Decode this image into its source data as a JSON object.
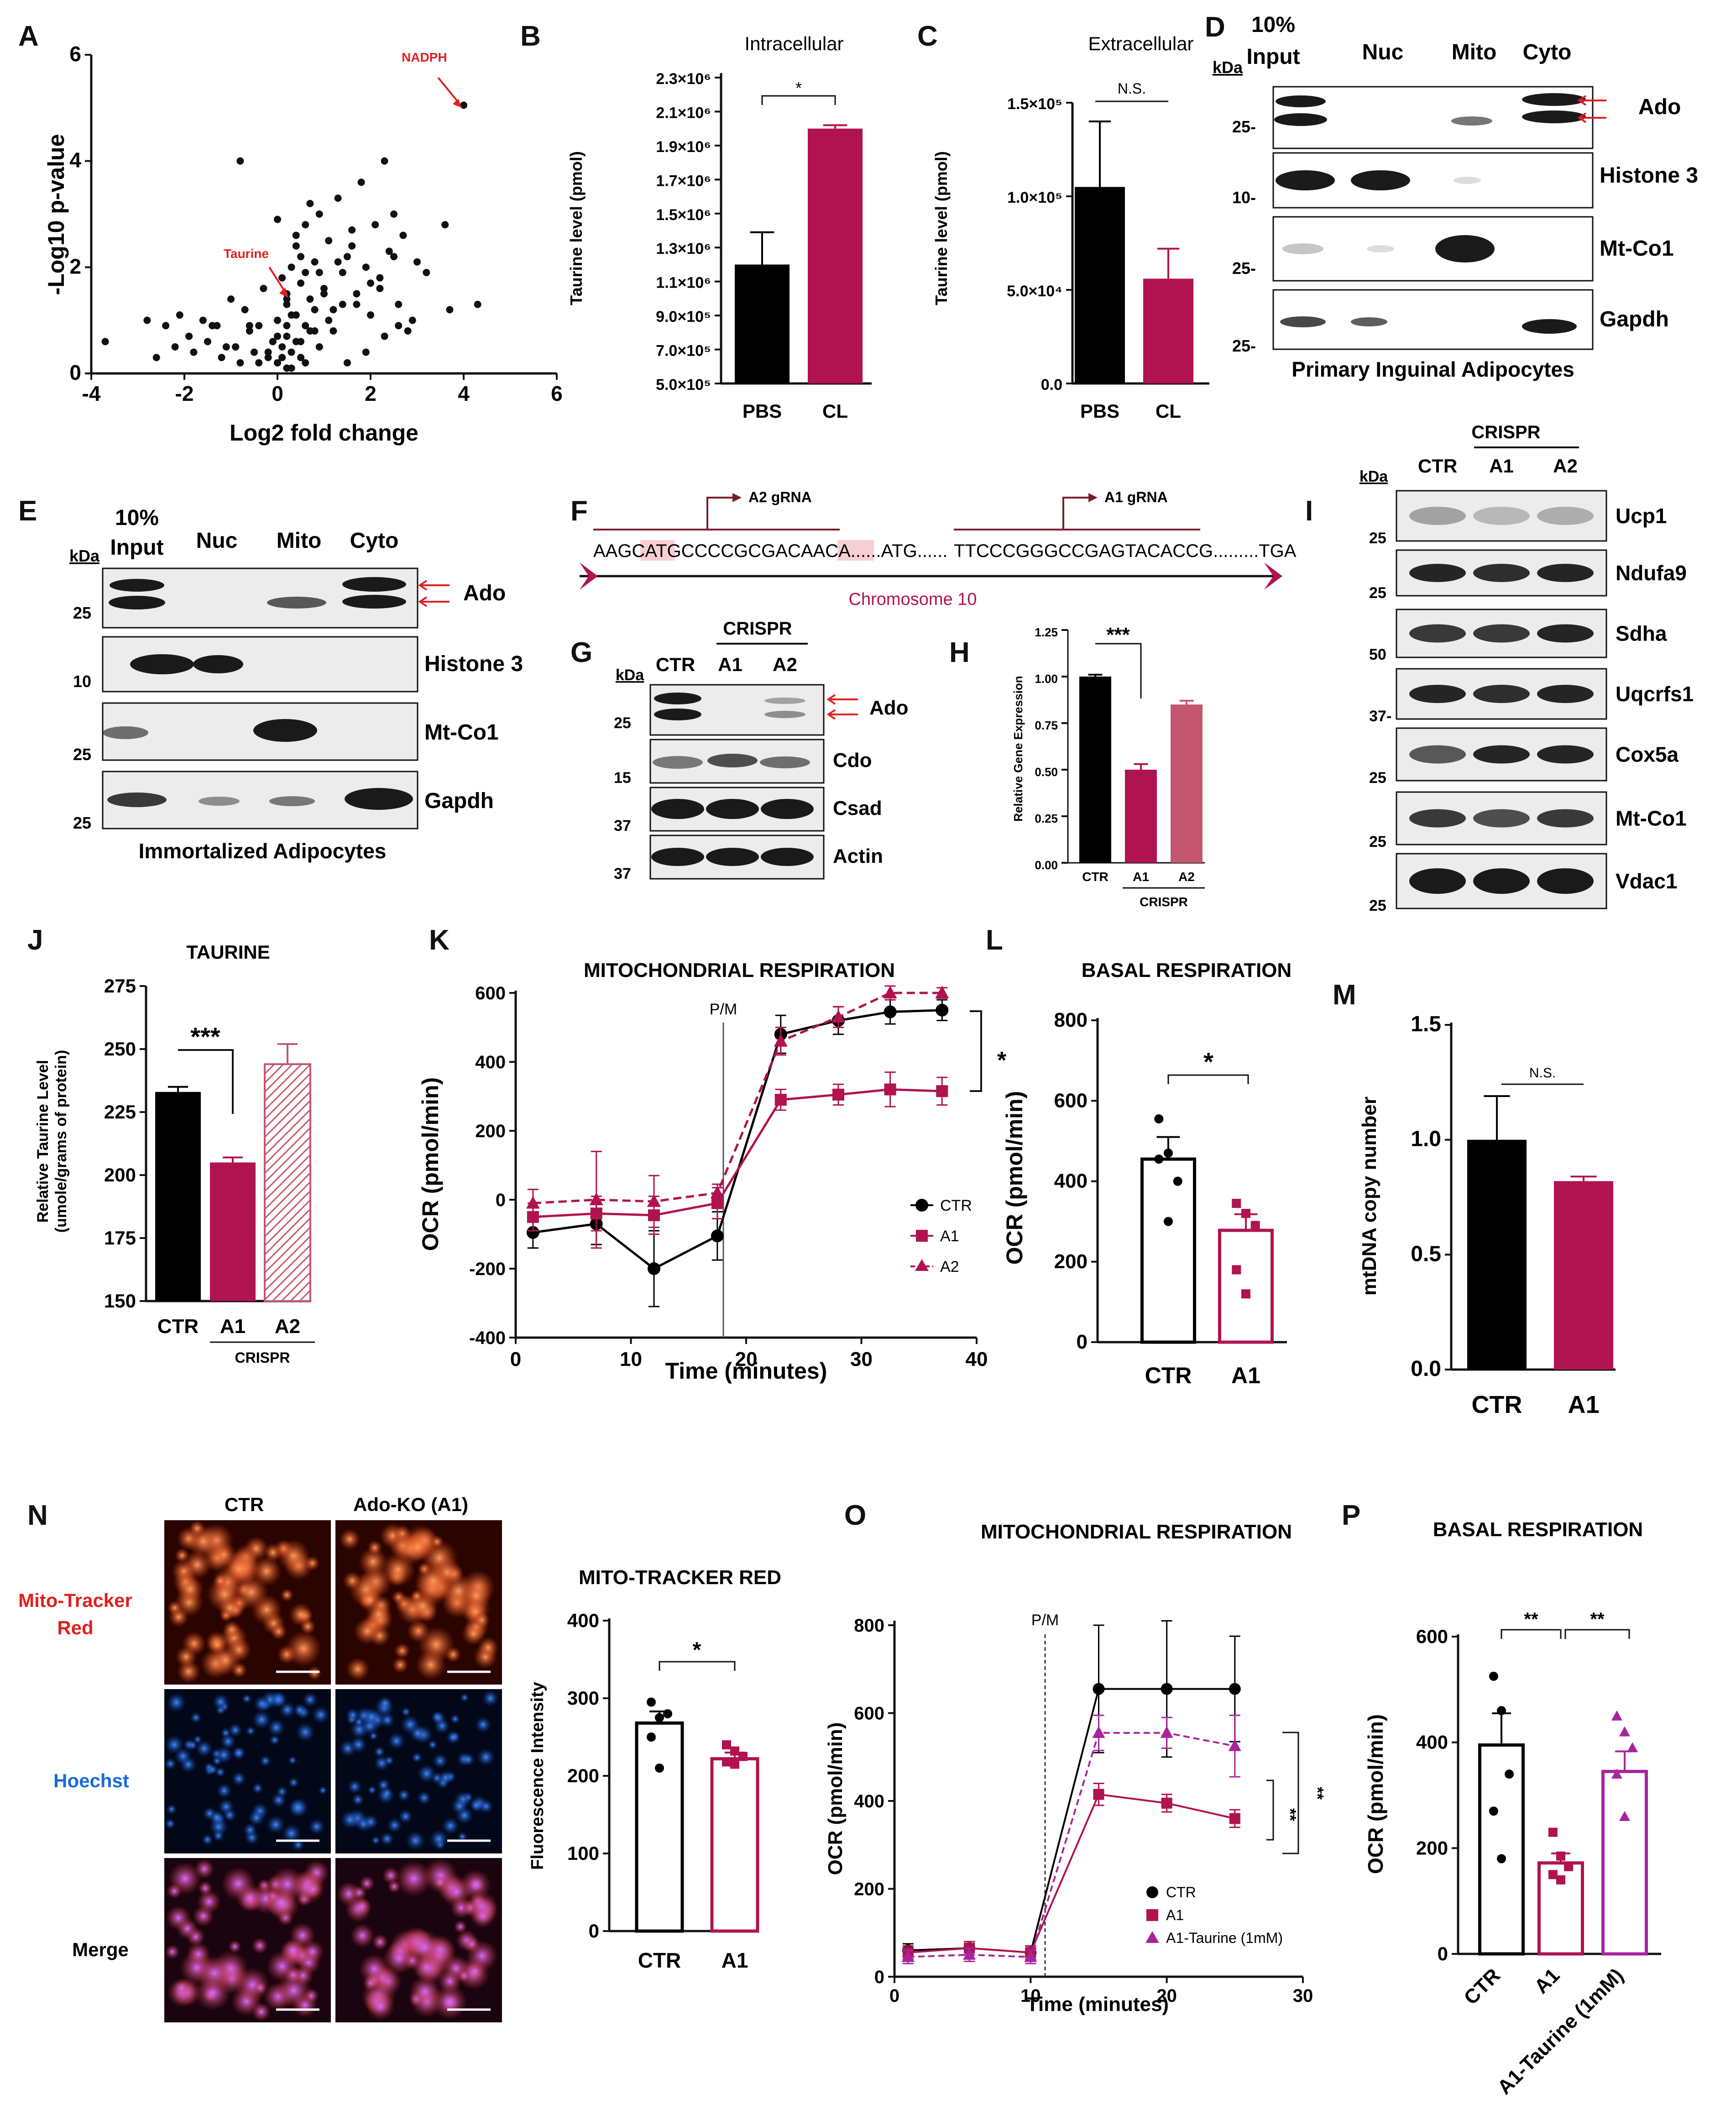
{
  "colors": {
    "ctr": "#000000",
    "a1": "#b0134f",
    "a2": "#c4566f",
    "taurine": "#a8249c",
    "red": "#e02020",
    "blot_bg": "#e9e9e9"
  },
  "panels": {
    "A": "A",
    "B": "B",
    "C": "C",
    "D": "D",
    "E": "E",
    "F": "F",
    "G": "G",
    "H": "H",
    "I": "I",
    "J": "J",
    "K": "K",
    "L": "L",
    "M": "M",
    "N": "N",
    "O": "O",
    "P": "P"
  },
  "common": {
    "kda": "kDa",
    "crispr": "CRISPR",
    "ctr": "CTR",
    "a1": "A1",
    "a2": "A2",
    "ns": "N.S.",
    "pm": "P/M",
    "star": "*",
    "stars2": "**",
    "stars3": "***"
  },
  "panelA": {
    "ylabel": "-Log10 p-value",
    "xlabel": "Log2 fold change",
    "nadph": "NADPH",
    "taurine": "Taurine",
    "xticks": [
      "-4",
      "-2",
      "0",
      "2",
      "4",
      "6"
    ],
    "yticks": [
      "0",
      "2",
      "4",
      "6"
    ]
  },
  "panelB": {
    "title": "Intracellular",
    "ylabel": "Taurine level (pmol)",
    "yticks": [
      "5.0×10⁵",
      "7.0×10⁵",
      "9.0×10⁵",
      "1.1×10⁶",
      "1.3×10⁶",
      "1.5×10⁶",
      "1.7×10⁶",
      "1.9×10⁶",
      "2.1×10⁶",
      "2.3×10⁶"
    ],
    "cats": [
      "PBS",
      "CL"
    ]
  },
  "panelC": {
    "title": "Extracellular",
    "ylabel": "Taurine level (pmol)",
    "yticks": [
      "0.0",
      "5.0×10⁴",
      "1.0×10⁵",
      "1.5×10⁵"
    ],
    "cats": [
      "PBS",
      "CL"
    ]
  },
  "panelD": {
    "cols": [
      "10%\nInput",
      "Nuc",
      "Mito",
      "Cyto"
    ],
    "col1a": "10%",
    "col1b": "Input",
    "rows": [
      "Ado",
      "Histone 3",
      "Mt-Co1",
      "Gapdh"
    ],
    "kda": [
      "25-",
      "10-",
      "25-",
      "25-"
    ],
    "caption": "Primary Inguinal Adipocytes"
  },
  "panelE": {
    "col1a": "10%",
    "col1b": "Input",
    "cols": [
      "Nuc",
      "Mito",
      "Cyto"
    ],
    "rows": [
      "Ado",
      "Histone 3",
      "Mt-Co1",
      "Gapdh"
    ],
    "kda": [
      "25",
      "10",
      "25",
      "25"
    ],
    "caption": "Immortalized Adipocytes"
  },
  "panelF": {
    "a2": "A2 gRNA",
    "a1": "A1 gRNA",
    "seq_left": "AAGCATGCCCCGCGACAACA......ATG......",
    "seq_right": "TTCCCGGGCCGAGTACACCG.........TGA",
    "chrom": "Chromosome 10"
  },
  "panelG": {
    "rows": [
      "Ado",
      "Cdo",
      "Csad",
      "Actin"
    ],
    "kda": [
      "25",
      "15",
      "37",
      "37"
    ]
  },
  "panelH": {
    "ylabel": "Relative Gene Expression",
    "yticks": [
      "0.00",
      "0.25",
      "0.50",
      "0.75",
      "1.00",
      "1.25"
    ]
  },
  "panelI": {
    "rows": [
      "Ucp1",
      "Ndufa9",
      "Sdha",
      "Uqcrfs1",
      "Cox5a",
      "Mt-Co1",
      "Vdac1"
    ],
    "kda": [
      "25",
      "25",
      "50",
      "37-",
      "25",
      "25",
      "25"
    ]
  },
  "panelJ": {
    "title": "TAURINE",
    "ylabel1": "Relative Taurine Level",
    "ylabel2": "(umole/grams of protein)",
    "yticks": [
      "150",
      "175",
      "200",
      "225",
      "250",
      "275"
    ]
  },
  "panelK": {
    "title": "MITOCHONDRIAL RESPIRATION",
    "ylabel": "OCR (pmol/min)",
    "xlabel": "Time (minutes)",
    "xticks": [
      "0",
      "10",
      "20",
      "30",
      "40"
    ],
    "yticks": [
      "-400",
      "-200",
      "0",
      "200",
      "400",
      "600"
    ],
    "legend": [
      "CTR",
      "A1",
      "A2"
    ]
  },
  "panelL": {
    "title": "BASAL RESPIRATION",
    "ylabel": "OCR (pmol/min)",
    "yticks": [
      "0",
      "200",
      "400",
      "600",
      "800"
    ]
  },
  "panelM": {
    "ylabel": "mtDNA copy number",
    "yticks": [
      "0.0",
      "0.5",
      "1.0",
      "1.5"
    ]
  },
  "panelN": {
    "col1": "CTR",
    "col2": "Ado-KO (A1)",
    "row1a": "Mito-Tracker",
    "row1b": "Red",
    "row2": "Hoechst",
    "row3": "Merge",
    "title": "MITO-TRACKER RED",
    "ylabel": "Fluorescence Intensity",
    "yticks": [
      "0",
      "100",
      "200",
      "300",
      "400"
    ]
  },
  "panelO": {
    "title": "MITOCHONDRIAL RESPIRATION",
    "ylabel": "OCR (pmol/min)",
    "xlabel": "Time (minutes)",
    "xticks": [
      "0",
      "10",
      "20",
      "30"
    ],
    "yticks": [
      "0",
      "200",
      "400",
      "600",
      "800"
    ],
    "legend": [
      "CTR",
      "A1",
      "A1-Taurine (1mM)"
    ]
  },
  "panelP": {
    "title": "BASAL RESPIRATION",
    "ylabel": "OCR (pmol/min)",
    "yticks": [
      "0",
      "200",
      "400",
      "600"
    ],
    "cats": [
      "CTR",
      "A1",
      "A1-Taurine (1mM)"
    ]
  },
  "chart_data": [
    {
      "id": "A",
      "type": "scatter",
      "xlabel": "Log2 fold change",
      "ylabel": "-Log10 p-value",
      "xlim": [
        -4,
        6
      ],
      "ylim": [
        0,
        6
      ],
      "annotations": [
        {
          "text": "NADPH",
          "x": 4.0,
          "y": 5.05
        },
        {
          "text": "Taurine",
          "x": 0.3,
          "y": 1.4
        }
      ],
      "x": [
        -3.7,
        -2.8,
        -2.6,
        -2.4,
        -2.2,
        -2.1,
        -1.9,
        -1.8,
        -1.6,
        -1.5,
        -1.3,
        -1.2,
        -1.0,
        -0.9,
        -0.8,
        -0.7,
        -0.6,
        -0.5,
        -0.4,
        -0.3,
        -0.2,
        -0.1,
        0.0,
        0.0,
        0.1,
        0.1,
        0.2,
        0.2,
        0.3,
        0.3,
        0.4,
        0.4,
        0.5,
        0.5,
        0.6,
        0.6,
        0.7,
        0.7,
        0.8,
        0.8,
        0.9,
        1.0,
        1.1,
        1.2,
        1.3,
        1.4,
        1.5,
        1.6,
        1.7,
        1.8,
        1.9,
        2.0,
        2.1,
        2.2,
        2.3,
        2.4,
        2.5,
        2.6,
        2.7,
        2.9,
        3.2,
        3.6,
        4.0,
        4.3,
        -0.8,
        0.2,
        0.5,
        0.9,
        1.2,
        1.5,
        1.9,
        2.3,
        2.6,
        0.1,
        0.3,
        0.6,
        0.4,
        0.2,
        0.8,
        1.0,
        -0.2,
        -0.4,
        0.0,
        0.6,
        1.3,
        1.7,
        2.0,
        2.5,
        -1.1,
        -0.6,
        0.3,
        0.7,
        1.1,
        1.4,
        0.9,
        0.5,
        0.2,
        0.4,
        1.6,
        2.2,
        2.8,
        3.0,
        3.7,
        -1.4,
        -0.9,
        0.0,
        0.2,
        0.5
      ],
      "y": [
        0.6,
        1.0,
        0.3,
        0.9,
        0.5,
        1.1,
        0.7,
        0.4,
        1.0,
        0.6,
        0.9,
        0.3,
        1.4,
        0.5,
        4.0,
        1.2,
        0.8,
        0.4,
        0.9,
        1.6,
        0.3,
        0.6,
        0.2,
        1.0,
        0.5,
        1.8,
        0.7,
        1.3,
        2.0,
        0.4,
        1.1,
        2.4,
        0.6,
        1.7,
        2.8,
        0.9,
        1.4,
        3.2,
        0.8,
        2.1,
        3.0,
        1.6,
        2.5,
        1.2,
        3.3,
        1.9,
        2.2,
        2.7,
        1.5,
        3.6,
        2.0,
        1.1,
        2.8,
        1.8,
        4.0,
        2.3,
        3.0,
        1.3,
        2.6,
        1.0,
        1.9,
        2.8,
        5.05,
        1.3,
        0.2,
        0.1,
        0.3,
        0.5,
        0.8,
        0.2,
        0.4,
        0.7,
        0.9,
        0.3,
        0.1,
        0.2,
        0.6,
        0.9,
        1.2,
        1.5,
        0.4,
        0.2,
        0.7,
        1.9,
        2.1,
        1.3,
        1.7,
        2.2,
        0.5,
        0.9,
        1.1,
        0.8,
        1.0,
        1.3,
        1.9,
        2.2,
        1.5,
        2.6,
        2.4,
        1.6,
        0.8,
        2.1,
        1.2,
        0.9,
        0.5,
        2.9,
        1.4,
        0.3
      ]
    },
    {
      "id": "B",
      "type": "bar",
      "title": "Intracellular",
      "ylabel": "Taurine level (pmol)",
      "categories": [
        "PBS",
        "CL"
      ],
      "values": [
        1200000,
        2000000
      ],
      "errors": [
        190000,
        20000
      ],
      "ylim": [
        500000,
        2300000
      ],
      "significance": "*"
    },
    {
      "id": "C",
      "type": "bar",
      "title": "Extracellular",
      "ylabel": "Taurine level (pmol)",
      "categories": [
        "PBS",
        "CL"
      ],
      "values": [
        105000,
        56000
      ],
      "errors": [
        35000,
        16000
      ],
      "ylim": [
        0,
        150000
      ],
      "significance": "N.S."
    },
    {
      "id": "H",
      "type": "bar",
      "ylabel": "Relative Gene Expression",
      "categories": [
        "CTR",
        "A1",
        "A2"
      ],
      "values": [
        1.0,
        0.5,
        0.85
      ],
      "errors": [
        0.01,
        0.03,
        0.02
      ],
      "ylim": [
        0,
        1.25
      ],
      "significance": "***"
    },
    {
      "id": "J",
      "type": "bar",
      "title": "TAURINE",
      "ylabel": "Relative Taurine Level (umole/grams of protein)",
      "categories": [
        "CTR",
        "A1",
        "A2"
      ],
      "values": [
        233,
        205,
        244
      ],
      "errors": [
        2,
        2,
        8
      ],
      "ylim": [
        150,
        275
      ],
      "significance": "***"
    },
    {
      "id": "K",
      "type": "line",
      "title": "MITOCHONDRIAL RESPIRATION",
      "xlabel": "Time (minutes)",
      "ylabel": "OCR (pmol/min)",
      "xlim": [
        0,
        40
      ],
      "ylim": [
        -400,
        600
      ],
      "x": [
        1.5,
        7,
        12,
        17.5,
        23,
        28,
        32.5,
        37
      ],
      "series": [
        {
          "name": "CTR",
          "values": [
            -95,
            -70,
            -200,
            -105,
            480,
            520,
            545,
            550
          ],
          "errors": [
            45,
            60,
            110,
            70,
            55,
            40,
            35,
            30
          ]
        },
        {
          "name": "A1",
          "values": [
            -50,
            -40,
            -45,
            -10,
            290,
            305,
            320,
            315
          ],
          "errors": [
            40,
            50,
            55,
            45,
            30,
            30,
            50,
            40
          ]
        },
        {
          "name": "A2",
          "values": [
            -10,
            0,
            -5,
            20,
            460,
            530,
            600,
            600
          ],
          "errors": [
            40,
            140,
            75,
            25,
            40,
            30,
            20,
            15
          ]
        }
      ],
      "significance": "*"
    },
    {
      "id": "L",
      "type": "bar",
      "title": "BASAL RESPIRATION",
      "ylabel": "OCR (pmol/min)",
      "categories": [
        "CTR",
        "A1"
      ],
      "values": [
        455,
        278
      ],
      "errors": [
        55,
        40
      ],
      "ylim": [
        0,
        800
      ],
      "points": [
        [
          555,
          470,
          400,
          455,
          300
        ],
        [
          345,
          320,
          290,
          180,
          120
        ]
      ],
      "significance": "*"
    },
    {
      "id": "M",
      "type": "bar",
      "ylabel": "mtDNA copy number",
      "categories": [
        "CTR",
        "A1"
      ],
      "values": [
        1.0,
        0.82
      ],
      "errors": [
        0.19,
        0.02
      ],
      "ylim": [
        0,
        1.5
      ],
      "significance": "N.S."
    },
    {
      "id": "N",
      "type": "bar",
      "title": "MITO-TRACKER RED",
      "ylabel": "Fluorescence Intensity",
      "categories": [
        "CTR",
        "A1"
      ],
      "values": [
        268,
        222
      ],
      "errors": [
        15,
        8
      ],
      "ylim": [
        0,
        400
      ],
      "points": [
        [
          295,
          275,
          280,
          250,
          210
        ],
        [
          240,
          232,
          225,
          218,
          215
        ]
      ],
      "significance": "*"
    },
    {
      "id": "O",
      "type": "line",
      "title": "MITOCHONDRIAL RESPIRATION",
      "xlabel": "Time (minutes)",
      "ylabel": "OCR (pmol/min)",
      "xlim": [
        0,
        30
      ],
      "ylim": [
        0,
        800
      ],
      "x": [
        1,
        5.5,
        10,
        15,
        20,
        25
      ],
      "series": [
        {
          "name": "CTR",
          "values": [
            60,
            65,
            55,
            655,
            655,
            655
          ],
          "errors": [
            15,
            15,
            15,
            145,
            155,
            120
          ]
        },
        {
          "name": "A1",
          "values": [
            55,
            65,
            55,
            415,
            395,
            360
          ],
          "errors": [
            15,
            15,
            15,
            25,
            20,
            20
          ]
        },
        {
          "name": "A1-Taurine (1mM)",
          "values": [
            45,
            50,
            45,
            555,
            555,
            525
          ],
          "errors": [
            15,
            15,
            15,
            40,
            35,
            70
          ]
        }
      ],
      "significance": [
        "**",
        "**"
      ]
    },
    {
      "id": "P",
      "type": "bar",
      "title": "BASAL RESPIRATION",
      "ylabel": "OCR (pmol/min)",
      "categories": [
        "CTR",
        "A1",
        "A1-Taurine (1mM)"
      ],
      "values": [
        395,
        172,
        345
      ],
      "errors": [
        60,
        18,
        38
      ],
      "ylim": [
        0,
        600
      ],
      "points": [
        [
          525,
          460,
          340,
          270,
          180
        ],
        [
          230,
          185,
          165,
          150,
          140
        ],
        [
          450,
          420,
          390,
          340,
          260
        ]
      ],
      "significance": [
        "**",
        "**"
      ]
    }
  ]
}
